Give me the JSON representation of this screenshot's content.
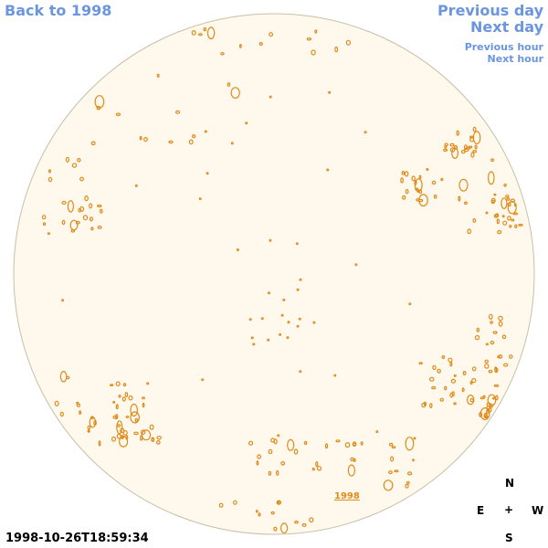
{
  "nav": {
    "back": "Back to 1998",
    "previous_day": "Previous day",
    "next_day": "Next day",
    "previous_hour": "Previous hour",
    "next_hour": "Next hour"
  },
  "timestamp": "1998-10-26T18:59:34",
  "compass": {
    "north": "N",
    "east": "E",
    "center": "+",
    "west": "W",
    "south": "S"
  },
  "disk": {
    "label": "1998"
  },
  "colors": {
    "disk_fill": "#fef9ec",
    "feature": "#e08a1a",
    "link": "#6b96df"
  }
}
